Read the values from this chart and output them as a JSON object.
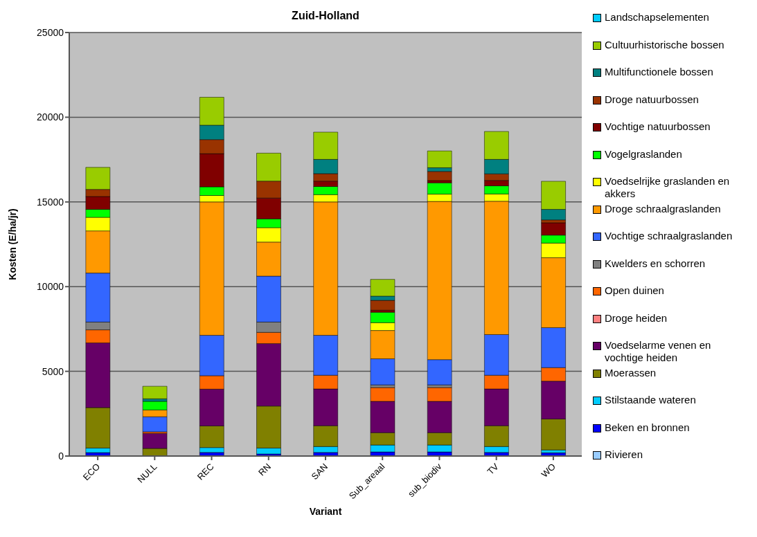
{
  "chart_data": {
    "type": "bar",
    "title": "Zuid-Holland",
    "xlabel": "Variant",
    "ylabel": "Kosten (E/ha/jr)",
    "categories": [
      "ECO",
      "NULL",
      "REC",
      "RN",
      "SAN",
      "Sub_areaal",
      "sub_biodiv",
      "TV",
      "WO"
    ],
    "stacked": true,
    "ylim": [
      0,
      25000
    ],
    "yticks": [
      0,
      5000,
      10000,
      15000,
      20000,
      25000
    ],
    "grid": "y",
    "legend": "right",
    "series": [
      {
        "name": "Rivieren",
        "color": "#99ccff",
        "values": [
          0,
          0,
          0,
          0,
          0,
          0,
          0,
          0,
          0
        ]
      },
      {
        "name": "Beken en bronnen",
        "color": "#0000ff",
        "values": [
          200,
          0,
          210,
          120,
          210,
          240,
          240,
          210,
          190
        ]
      },
      {
        "name": "Stilstaande wateren",
        "color": "#00ccff",
        "values": [
          270,
          0,
          290,
          350,
          350,
          410,
          410,
          350,
          170
        ]
      },
      {
        "name": "Moerassen",
        "color": "#808000",
        "values": [
          2390,
          450,
          1280,
          2480,
          1230,
          730,
          730,
          1230,
          1830
        ]
      },
      {
        "name": "Voedselarme venen en vochtige heiden",
        "color": "#660066",
        "values": [
          3820,
          890,
          2170,
          3690,
          2170,
          1850,
          1850,
          2170,
          2230
        ]
      },
      {
        "name": "Droge heiden",
        "color": "#ff8080",
        "values": [
          0,
          0,
          0,
          0,
          0,
          0,
          0,
          0,
          0
        ]
      },
      {
        "name": "Open duinen",
        "color": "#ff6600",
        "values": [
          770,
          90,
          790,
          660,
          810,
          810,
          810,
          810,
          800
        ]
      },
      {
        "name": "Kwelders en schorren",
        "color": "#808080",
        "values": [
          460,
          0,
          0,
          610,
          null,
          160,
          160,
          0,
          0
        ]
      },
      {
        "name": "Vochtige schraalgraslanden",
        "color": "#3366ff",
        "values": [
          2890,
          890,
          2390,
          2710,
          2360,
          1540,
          1490,
          2400,
          2360
        ]
      },
      {
        "name": "Droge schraalgraslanden",
        "color": "#ff9900",
        "values": [
          2490,
          400,
          7870,
          2010,
          7870,
          1670,
          9340,
          7870,
          4130
        ]
      },
      {
        "name": "Voedselrijke graslanden en akkers",
        "color": "#ffff00",
        "values": [
          800,
          null,
          380,
          850,
          430,
          460,
          430,
          430,
          860
        ]
      },
      {
        "name": "Vogelgraslanden",
        "color": "#00ff00",
        "values": [
          470,
          510,
          510,
          520,
          480,
          620,
          670,
          480,
          470
        ]
      },
      {
        "name": "Vochtige natuurbossen",
        "color": "#800000",
        "values": [
          760,
          0,
          1960,
          1230,
          320,
          120,
          130,
          320,
          730
        ]
      },
      {
        "name": "Droge natuurbossen",
        "color": "#993300",
        "values": [
          420,
          0,
          830,
          1000,
          440,
          580,
          540,
          390,
          170
        ]
      },
      {
        "name": "Multifunctionele bossen",
        "color": "#008080",
        "values": [
          0,
          150,
          850,
          0,
          840,
          250,
          220,
          850,
          620
        ]
      },
      {
        "name": "Cultuurhistorische bossen",
        "color": "#99cc00",
        "values": [
          1300,
          740,
          1650,
          1650,
          1610,
          990,
          990,
          1650,
          1660
        ]
      },
      {
        "name": "Landschapselementen",
        "color": "#00ccff",
        "values": [
          0,
          0,
          0,
          0,
          0,
          0,
          0,
          0,
          0
        ]
      }
    ]
  }
}
